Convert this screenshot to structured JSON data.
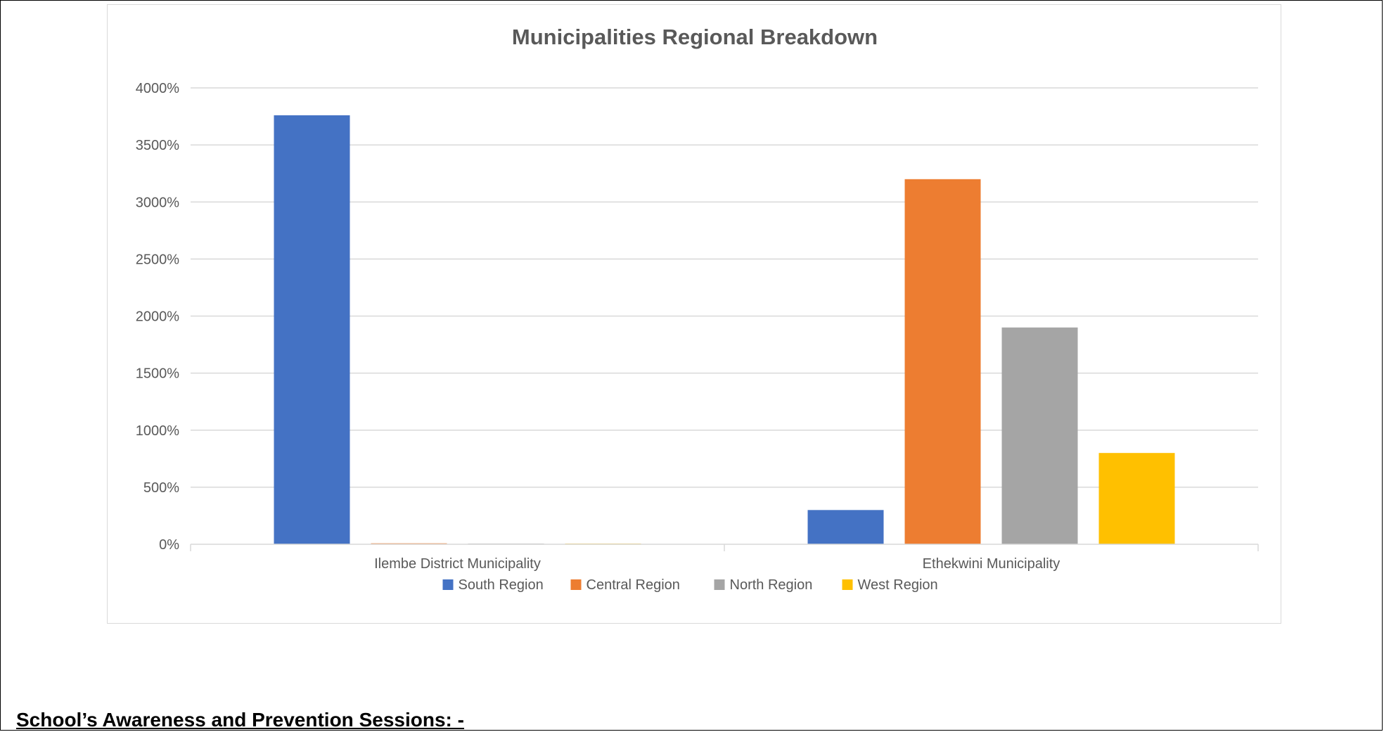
{
  "chart_data": {
    "type": "bar",
    "title": "Municipalities Regional Breakdown",
    "categories": [
      "Ilembe District Municipality",
      "Ethekwini Municipality"
    ],
    "series": [
      {
        "name": "South Region",
        "values": [
          3760,
          300
        ],
        "color": "#4472c4"
      },
      {
        "name": "Central Region",
        "values": [
          8,
          3200
        ],
        "color": "#ed7d31"
      },
      {
        "name": "North Region",
        "values": [
          5,
          1900
        ],
        "color": "#a5a5a5"
      },
      {
        "name": "West Region",
        "values": [
          5,
          800
        ],
        "color": "#ffc000"
      }
    ],
    "ylim": [
      0,
      4000
    ],
    "yticks": [
      "0%",
      "500%",
      "1000%",
      "1500%",
      "2000%",
      "2500%",
      "3000%",
      "3500%",
      "4000%"
    ],
    "ytick_values": [
      0,
      500,
      1000,
      1500,
      2000,
      2500,
      3000,
      3500,
      4000
    ],
    "grid": true,
    "legend": "bottom",
    "xlabel": "",
    "ylabel": ""
  },
  "document": {
    "section_heading": "School’s Awareness and Prevention Sessions: -"
  }
}
